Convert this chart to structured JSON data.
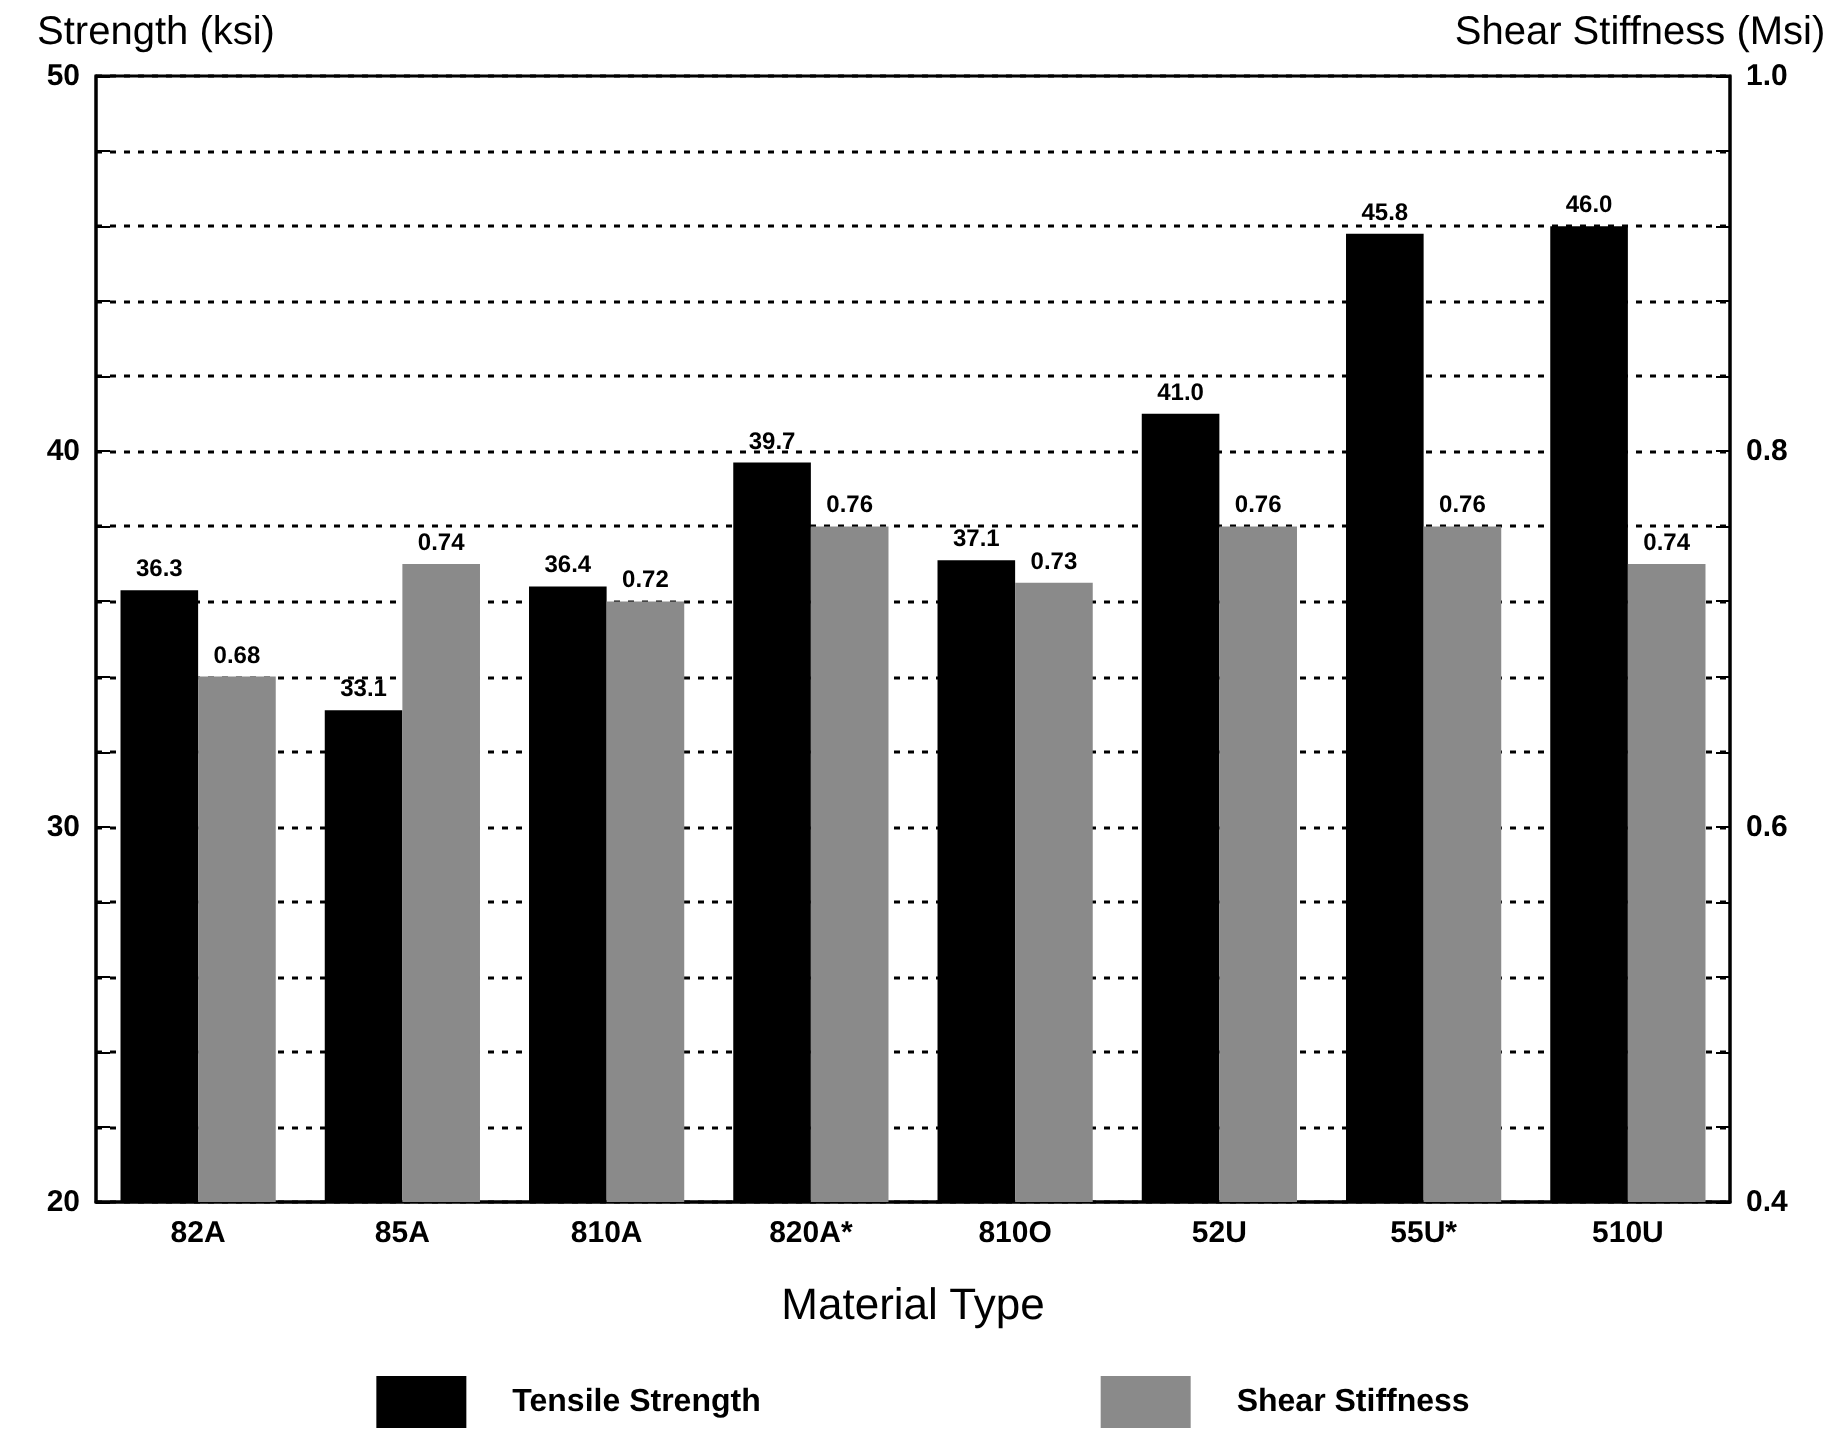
{
  "chart_data": {
    "type": "bar",
    "xlabel": "Material Type",
    "ylabel": "Strength (ksi)",
    "y2label": "Shear Stiffness (Msi)",
    "categories": [
      "82A",
      "85A",
      "810A",
      "820A*",
      "810O",
      "52U",
      "55U*",
      "510U"
    ],
    "series": [
      {
        "name": "Tensile Strength",
        "color": "#000000",
        "values": [
          36.3,
          33.1,
          36.4,
          39.7,
          37.1,
          41.0,
          45.8,
          46.0
        ],
        "value_labels": [
          "36.3",
          "33.1",
          "36.4",
          "39.7",
          "37.1",
          "41.0",
          "45.8",
          "46.0"
        ]
      },
      {
        "name": "Shear Stiffness",
        "color": "#8a8a8a",
        "axis": "y2",
        "values": [
          0.68,
          0.74,
          0.72,
          0.76,
          0.73,
          0.76,
          0.76,
          0.74
        ],
        "value_labels": [
          "0.68",
          "0.74",
          "0.72",
          "0.76",
          "0.73",
          "0.76",
          "0.76",
          "0.74"
        ]
      }
    ],
    "ylim": [
      20,
      50
    ],
    "yticks": [
      20,
      {
        "value": 22,
        "label": null
      },
      {
        "value": 24,
        "label": null
      },
      {
        "value": 26,
        "label": null
      },
      {
        "value": 28,
        "label": null
      },
      30,
      {
        "value": 32,
        "label": null
      },
      {
        "value": 34,
        "label": null
      },
      {
        "value": 36,
        "label": null
      },
      {
        "value": 38,
        "label": null
      },
      40,
      {
        "value": 42,
        "label": null
      },
      {
        "value": 44,
        "label": null
      },
      {
        "value": 46,
        "label": null
      },
      {
        "value": 48,
        "label": null
      },
      50
    ],
    "y2lim": [
      0.4,
      1.0
    ],
    "y2ticks": [
      {
        "value": 0.4,
        "label": "0.4"
      },
      {
        "value": 0.44,
        "label": null
      },
      {
        "value": 0.48,
        "label": null
      },
      {
        "value": 0.52,
        "label": null
      },
      {
        "value": 0.56,
        "label": null
      },
      {
        "value": 0.6,
        "label": "0.6"
      },
      {
        "value": 0.64,
        "label": null
      },
      {
        "value": 0.68,
        "label": null
      },
      {
        "value": 0.72,
        "label": null
      },
      {
        "value": 0.76,
        "label": null
      },
      {
        "value": 0.8,
        "label": "0.8"
      },
      {
        "value": 0.84,
        "label": null
      },
      {
        "value": 0.88,
        "label": null
      },
      {
        "value": 0.92,
        "label": null
      },
      {
        "value": 0.96,
        "label": null
      },
      {
        "value": 1.0,
        "label": "1.0"
      }
    ],
    "grid": "y",
    "line_style": "dotted",
    "legend": "bottom"
  }
}
